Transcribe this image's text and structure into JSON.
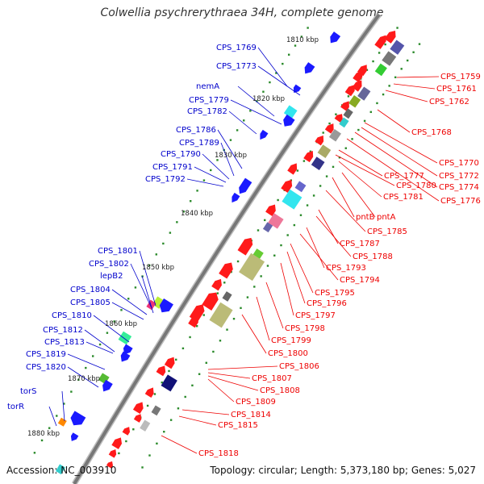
{
  "title": "Colwellia psychrerythraea 34H, complete genome",
  "footer": {
    "accession": "Accession: NC_003910",
    "topology": "Topology: circular; Length: 5,373,180 bp; Genes: 5,027"
  },
  "ruler": [
    {
      "label": "1810 kbp"
    },
    {
      "label": "1820 kbp"
    },
    {
      "label": "1830 kbp"
    },
    {
      "label": "1840 kbp"
    },
    {
      "label": "1850 kbp"
    },
    {
      "label": "1860 kbp"
    },
    {
      "label": "1870 kbp"
    },
    {
      "label": "1880 kbp"
    }
  ],
  "left_genes": [
    {
      "label": "CPS_1769"
    },
    {
      "label": "CPS_1773"
    },
    {
      "label": "nemA"
    },
    {
      "label": "CPS_1779"
    },
    {
      "label": "CPS_1782"
    },
    {
      "label": "CPS_1786"
    },
    {
      "label": "CPS_1789"
    },
    {
      "label": "CPS_1790"
    },
    {
      "label": "CPS_1791"
    },
    {
      "label": "CPS_1792"
    },
    {
      "label": "CPS_1801"
    },
    {
      "label": "CPS_1802"
    },
    {
      "label": "lepB2"
    },
    {
      "label": "CPS_1804"
    },
    {
      "label": "CPS_1805"
    },
    {
      "label": "CPS_1810"
    },
    {
      "label": "CPS_1812"
    },
    {
      "label": "CPS_1813"
    },
    {
      "label": "CPS_1819"
    },
    {
      "label": "CPS_1820"
    },
    {
      "label": "torS"
    },
    {
      "label": "torR"
    }
  ],
  "right_genes": [
    {
      "label": "CPS_1759"
    },
    {
      "label": "CPS_1761"
    },
    {
      "label": "CPS_1762"
    },
    {
      "label": "CPS_1768"
    },
    {
      "label": "CPS_1770"
    },
    {
      "label": "CPS_1772"
    },
    {
      "label": "CPS_1774"
    },
    {
      "label": "CPS_1776"
    },
    {
      "label": "CPS_1777"
    },
    {
      "label": "CPS_1780"
    },
    {
      "label": "CPS_1781"
    },
    {
      "label": "pntB"
    },
    {
      "label": "pntA"
    },
    {
      "label": "CPS_1785"
    },
    {
      "label": "CPS_1787"
    },
    {
      "label": "CPS_1788"
    },
    {
      "label": "CPS_1793"
    },
    {
      "label": "CPS_1794"
    },
    {
      "label": "CPS_1795"
    },
    {
      "label": "CPS_1796"
    },
    {
      "label": "CPS_1797"
    },
    {
      "label": "CPS_1798"
    },
    {
      "label": "CPS_1799"
    },
    {
      "label": "CPS_1800"
    },
    {
      "label": "CPS_1806"
    },
    {
      "label": "CPS_1807"
    },
    {
      "label": "CPS_1808"
    },
    {
      "label": "CPS_1809"
    },
    {
      "label": "CPS_1814"
    },
    {
      "label": "CPS_1815"
    },
    {
      "label": "CPS_1818"
    }
  ],
  "colors": {
    "backbone": "#777777",
    "forward_label": "#0000cc",
    "reverse_label": "#ee0000",
    "forward_gene": "#1a1aff",
    "reverse_gene": "#ff0000",
    "tick": "#2a8a2a"
  }
}
